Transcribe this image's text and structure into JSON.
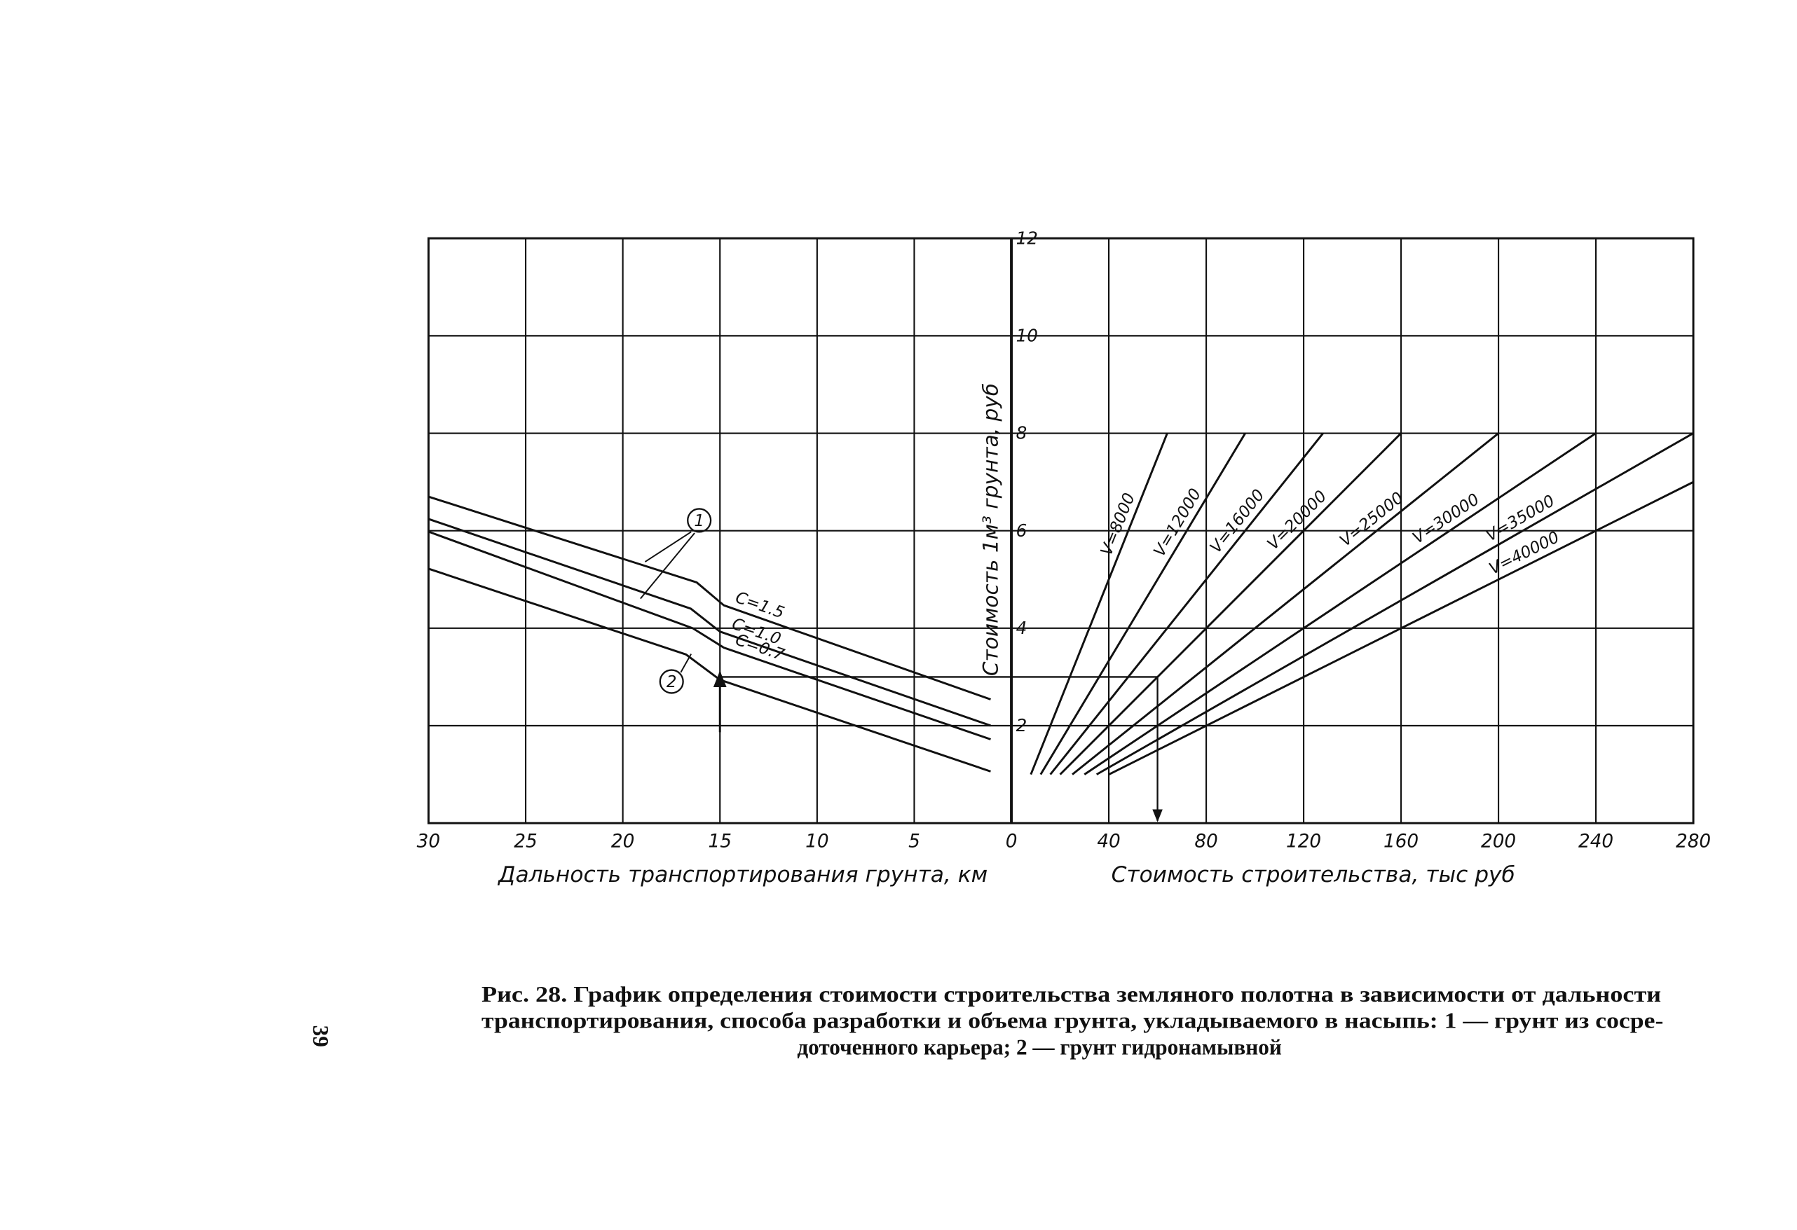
{
  "chart_data": [
    {
      "type": "line",
      "x_label": "Дальность транспортирования грунта, км",
      "y_label": "Стоимость 1м³ грунта, руб",
      "xlim": [
        30,
        0
      ],
      "xticks": [
        30,
        25,
        20,
        15,
        10,
        5,
        0
      ],
      "ylim": [
        0,
        12
      ],
      "yticks": [
        2,
        4,
        6,
        8,
        10,
        12
      ],
      "grid": true,
      "color": "#111111",
      "annotations": [
        "1",
        "2"
      ],
      "series": [
        {
          "name": "C=1.5",
          "x": [
            30,
            16.2,
            14.8,
            1.07
          ],
          "values": [
            6.7,
            4.94,
            4.47,
            2.54
          ]
        },
        {
          "name": "C=1.0",
          "x": [
            30,
            16.5,
            15.0,
            1.07
          ],
          "values": [
            6.24,
            4.4,
            3.93,
            2.0
          ]
        },
        {
          "name": "C=0.7",
          "x": [
            30,
            16.4,
            14.8,
            1.07
          ],
          "values": [
            5.98,
            4.0,
            3.6,
            1.72
          ]
        },
        {
          "x": [
            30,
            16.75,
            15.0,
            1.07
          ],
          "values": [
            5.22,
            3.46,
            2.94,
            1.06
          ]
        }
      ]
    },
    {
      "type": "line",
      "x_label": "Стоимость строительства, тыс руб",
      "xlim": [
        0,
        280
      ],
      "xticks": [
        40,
        80,
        120,
        160,
        200,
        240,
        280
      ],
      "ylim": [
        0,
        12
      ],
      "grid": true,
      "color": "#111111",
      "guide": {
        "distance": 15,
        "unit_cost": 3,
        "construction_cost": 60
      },
      "series": [
        {
          "name": "V=8000",
          "x": [
            8,
            64
          ],
          "values": [
            1,
            8
          ]
        },
        {
          "name": "V=12000",
          "x": [
            12,
            96
          ],
          "values": [
            1,
            8
          ]
        },
        {
          "name": "V=16000",
          "x": [
            16,
            128
          ],
          "values": [
            1,
            8
          ]
        },
        {
          "name": "V=20000",
          "x": [
            20,
            160
          ],
          "values": [
            1,
            8
          ]
        },
        {
          "name": "V=25000",
          "x": [
            25,
            200
          ],
          "values": [
            1,
            8
          ]
        },
        {
          "name": "V=30000",
          "x": [
            30,
            240
          ],
          "values": [
            1,
            8
          ]
        },
        {
          "name": "V=35000",
          "x": [
            35,
            280
          ],
          "values": [
            1,
            8
          ]
        },
        {
          "name": "V=40000",
          "x": [
            40,
            280
          ],
          "values": [
            1,
            7
          ]
        }
      ]
    }
  ],
  "caption": {
    "lines": [
      "Рис. 28. График определения стоимости строительства земляного полотна в зависимости от дальности",
      "транспортирования, способа разработки и объема грунта, укладываемого в насыпь: 1 — грунт из сосре-",
      "доточенного карьера; 2 — грунт гидронамывной"
    ]
  },
  "page_number": "39"
}
